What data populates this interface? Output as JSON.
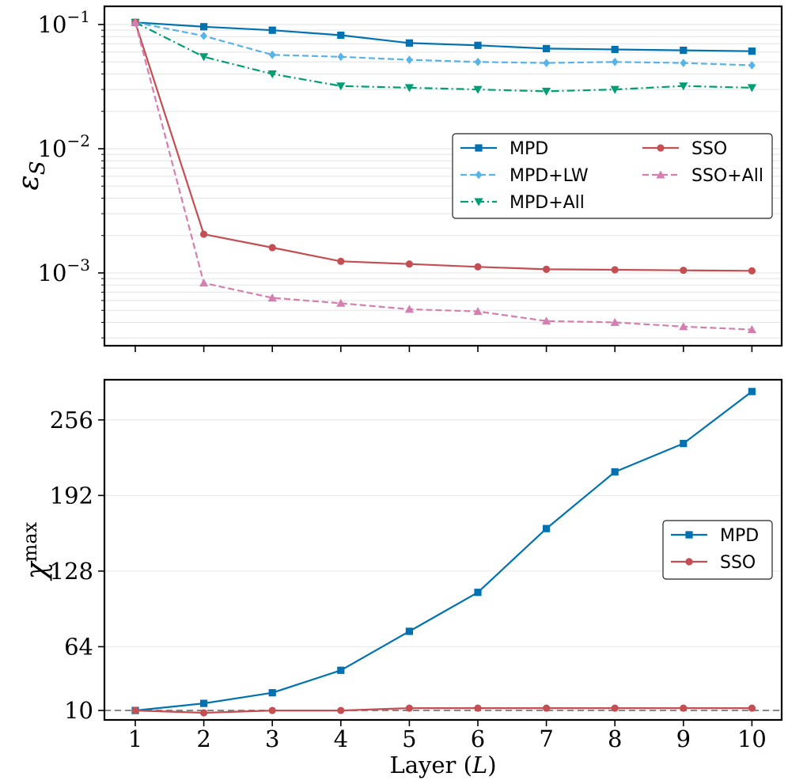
{
  "chart_data": [
    {
      "type": "line",
      "yscale": "log",
      "ylabel": "ε_S",
      "x": [
        1,
        2,
        3,
        4,
        5,
        6,
        7,
        8,
        9,
        10
      ],
      "ytick_labels": [
        {
          "base": "10",
          "exp": "−1",
          "value": 0.1
        },
        {
          "base": "10",
          "exp": "−2",
          "value": 0.01
        },
        {
          "base": "10",
          "exp": "−3",
          "value": 0.001
        }
      ],
      "legend_location": "center-right",
      "series": [
        {
          "name": "MPD",
          "color": "#0072B2",
          "style": "solid",
          "marker": "square",
          "values": [
            0.104,
            0.096,
            0.09,
            0.082,
            0.071,
            0.068,
            0.064,
            0.063,
            0.062,
            0.061
          ]
        },
        {
          "name": "MPD+LW",
          "color": "#56B4E9",
          "style": "dashed",
          "marker": "diamond",
          "values": [
            0.104,
            0.081,
            0.057,
            0.055,
            0.052,
            0.05,
            0.049,
            0.05,
            0.049,
            0.047
          ]
        },
        {
          "name": "MPD+All",
          "color": "#009E73",
          "style": "dashdot",
          "marker": "triangle-down",
          "values": [
            0.104,
            0.055,
            0.04,
            0.032,
            0.031,
            0.03,
            0.029,
            0.03,
            0.032,
            0.031
          ]
        },
        {
          "name": "SSO",
          "color": "#C44E52",
          "style": "solid",
          "marker": "circle",
          "values": [
            0.104,
            0.00205,
            0.0016,
            0.00124,
            0.00118,
            0.00112,
            0.00107,
            0.00106,
            0.00105,
            0.00104
          ]
        },
        {
          "name": "SSO+All",
          "color": "#D47FAF",
          "style": "dashed",
          "marker": "triangle-up",
          "values": [
            0.104,
            0.00083,
            0.00063,
            0.00057,
            0.00051,
            0.00049,
            0.00041,
            0.0004,
            0.00037,
            0.00035
          ]
        }
      ]
    },
    {
      "type": "line",
      "ylabel": "χ_max",
      "xlabel": "Layer (L)",
      "x": [
        1,
        2,
        3,
        4,
        5,
        6,
        7,
        8,
        9,
        10
      ],
      "xtick_labels": [
        "1",
        "2",
        "3",
        "4",
        "5",
        "6",
        "7",
        "8",
        "9",
        "10"
      ],
      "yticks": [
        10,
        64,
        128,
        192,
        256
      ],
      "ylim": [
        2,
        290
      ],
      "reference_line": {
        "y": 10,
        "color": "#888888",
        "style": "dashed"
      },
      "legend_location": "center-right",
      "series": [
        {
          "name": "MPD",
          "color": "#0072B2",
          "style": "solid",
          "marker": "square",
          "values": [
            10,
            16,
            25,
            44,
            77,
            110,
            164,
            212,
            236,
            280
          ]
        },
        {
          "name": "SSO",
          "color": "#C44E52",
          "style": "solid",
          "marker": "circle",
          "values": [
            10,
            8,
            10,
            10,
            12,
            12,
            12,
            12,
            12,
            12
          ]
        }
      ]
    }
  ]
}
